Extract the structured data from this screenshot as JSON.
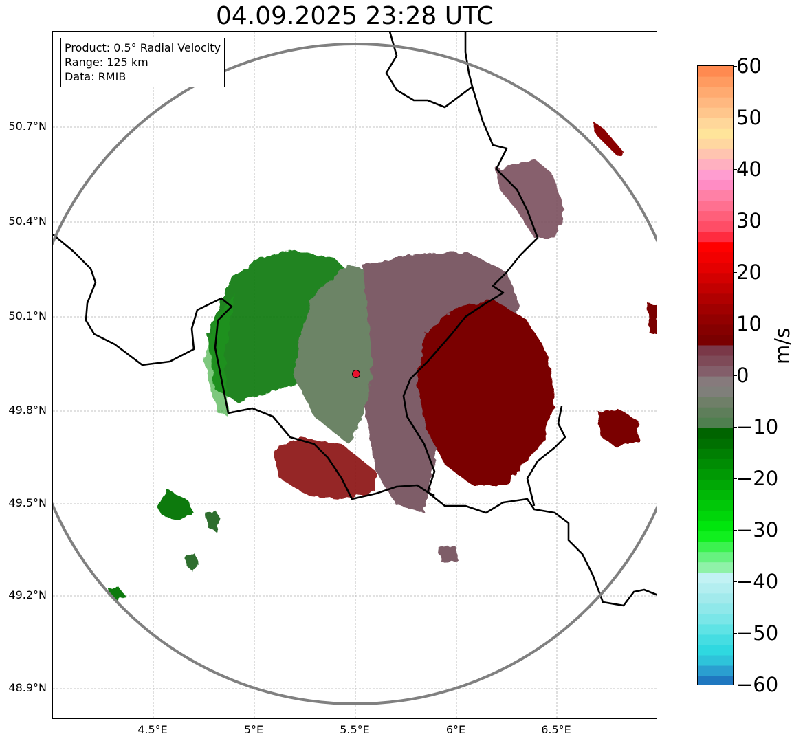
{
  "title": "04.09.2025 23:28 UTC",
  "info": {
    "product": "Product: 0.5° Radial Velocity",
    "range": "Range: 125 km",
    "source": "Data: RMIB"
  },
  "axes": {
    "lat_ticks": [
      "50.7°N",
      "50.4°N",
      "50.1°N",
      "49.8°N",
      "49.5°N",
      "49.2°N",
      "48.9°N"
    ],
    "lon_ticks": [
      "4.5°E",
      "5°E",
      "5.5°E",
      "6°E",
      "6.5°E"
    ]
  },
  "colorbar": {
    "unit": "m/s",
    "min": -60,
    "max": 60,
    "ticks": [
      "60",
      "50",
      "40",
      "30",
      "20",
      "10",
      "0",
      "−10",
      "−20",
      "−30",
      "−40",
      "−50",
      "−60"
    ],
    "colors": [
      "#1f78c0",
      "#2a9fd0",
      "#2ec3da",
      "#2fd8e0",
      "#45dde2",
      "#5fe3e5",
      "#7ae6e8",
      "#8fe8ea",
      "#a2eaec",
      "#b3eef0",
      "#c2f2f4",
      "#8ff2a8",
      "#66f27f",
      "#3bf24f",
      "#10f01e",
      "#00e60d",
      "#00d60a",
      "#00c808",
      "#00b806",
      "#00a805",
      "#009904",
      "#008c03",
      "#007f02",
      "#007001",
      "#006400",
      "#4f7f4f",
      "#5e7e5a",
      "#6f7f68",
      "#7f7f7a",
      "#867a7c",
      "#835e6a",
      "#7e4a58",
      "#7a3848",
      "#7a0000",
      "#850000",
      "#920000",
      "#a00000",
      "#b00000",
      "#c20000",
      "#d30000",
      "#e40000",
      "#f20000",
      "#ff0000",
      "#ff2b3f",
      "#ff4d66",
      "#ff5f7a",
      "#ff7090",
      "#ff80a6",
      "#ff8cc4",
      "#ff9dd0",
      "#ffb0c0",
      "#ffc4b0",
      "#ffd7a0",
      "#ffe49a",
      "#ffd79a",
      "#ffc68c",
      "#ffb880",
      "#ffaa70",
      "#ff9b60",
      "#ff8a50"
    ]
  },
  "radar_site": {
    "lon": 5.5,
    "lat": 49.914
  },
  "colors": {
    "range_ring": "#808080",
    "border": "#000000",
    "grid": "#b0b0b0",
    "site_marker": "#e8112d"
  }
}
